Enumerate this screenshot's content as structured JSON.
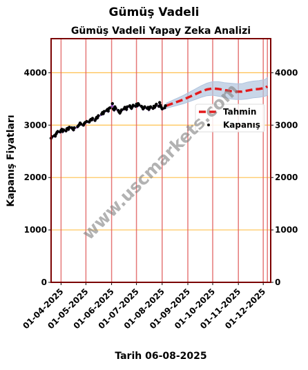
{
  "figure": {
    "title": "Gümüş Vadeli",
    "footer": "Tarih 06-08-2025",
    "watermark": "www.uscmarkets.com"
  },
  "chart_data": {
    "type": "line",
    "title": "Gümüş Vadeli Yapay Zeka Analizi",
    "xlabel": "",
    "ylabel": "Kapanış Fiyatları",
    "ylim": [
      0,
      4650
    ],
    "xlim": [
      "2025-03-20",
      "2025-12-10"
    ],
    "yticks": [
      0,
      1000,
      2000,
      3000,
      4000
    ],
    "xticks": [
      "01-04-2025",
      "01-05-2025",
      "01-06-2025",
      "01-07-2025",
      "01-08-2025",
      "01-09-2025",
      "01-10-2025",
      "01-11-2025",
      "01-12-2025"
    ],
    "vertical_lines": [
      "2025-03-20",
      "2025-04-01",
      "2025-05-01",
      "2025-06-01",
      "2025-07-01",
      "2025-08-01",
      "2025-09-01",
      "2025-10-01",
      "2025-11-01",
      "2025-12-01",
      "2025-12-06"
    ],
    "grid": "horizontal",
    "legend_position": "right",
    "colors": {
      "forecast": "#e31a1c",
      "close": "#000000",
      "band": "#b0c4de",
      "grid": "#ffc04d",
      "vline": "#e06060",
      "frame": "#7a0000",
      "underlay": "#7b2fbf"
    },
    "series": [
      {
        "name": "Tahmin",
        "style": "dashed",
        "x": [
          "2025-08-06",
          "2025-08-13",
          "2025-08-20",
          "2025-08-27",
          "2025-09-03",
          "2025-09-10",
          "2025-09-17",
          "2025-09-24",
          "2025-10-01",
          "2025-10-08",
          "2025-10-15",
          "2025-10-22",
          "2025-10-29",
          "2025-11-05",
          "2025-11-12",
          "2025-11-19",
          "2025-11-26",
          "2025-12-03",
          "2025-12-06"
        ],
        "values": [
          3370,
          3410,
          3450,
          3490,
          3540,
          3590,
          3640,
          3680,
          3700,
          3690,
          3670,
          3650,
          3640,
          3640,
          3660,
          3680,
          3690,
          3710,
          3740
        ],
        "lower": [
          3320,
          3350,
          3380,
          3410,
          3450,
          3490,
          3530,
          3560,
          3570,
          3550,
          3530,
          3500,
          3490,
          3490,
          3500,
          3520,
          3530,
          3550,
          3570
        ],
        "upper": [
          3420,
          3470,
          3520,
          3570,
          3630,
          3690,
          3750,
          3800,
          3830,
          3830,
          3810,
          3800,
          3790,
          3790,
          3820,
          3840,
          3850,
          3870,
          3910
        ]
      },
      {
        "name": "Kapanış",
        "style": "points",
        "x": [
          "2025-03-20",
          "2025-03-21",
          "2025-03-24",
          "2025-03-25",
          "2025-03-26",
          "2025-03-27",
          "2025-03-28",
          "2025-03-31",
          "2025-04-01",
          "2025-04-02",
          "2025-04-03",
          "2025-04-04",
          "2025-04-07",
          "2025-04-08",
          "2025-04-09",
          "2025-04-10",
          "2025-04-11",
          "2025-04-14",
          "2025-04-15",
          "2025-04-16",
          "2025-04-17",
          "2025-04-21",
          "2025-04-22",
          "2025-04-23",
          "2025-04-24",
          "2025-04-25",
          "2025-04-28",
          "2025-04-29",
          "2025-04-30",
          "2025-05-02",
          "2025-05-05",
          "2025-05-06",
          "2025-05-07",
          "2025-05-08",
          "2025-05-09",
          "2025-05-12",
          "2025-05-13",
          "2025-05-14",
          "2025-05-15",
          "2025-05-16",
          "2025-05-20",
          "2025-05-21",
          "2025-05-22",
          "2025-05-23",
          "2025-05-26",
          "2025-05-27",
          "2025-05-28",
          "2025-05-29",
          "2025-05-30",
          "2025-06-02",
          "2025-06-03",
          "2025-06-04",
          "2025-06-05",
          "2025-06-06",
          "2025-06-09",
          "2025-06-10",
          "2025-06-11",
          "2025-06-12",
          "2025-06-13",
          "2025-06-16",
          "2025-06-17",
          "2025-06-18",
          "2025-06-19",
          "2025-06-20",
          "2025-06-23",
          "2025-06-24",
          "2025-06-25",
          "2025-06-26",
          "2025-06-27",
          "2025-06-30",
          "2025-07-01",
          "2025-07-02",
          "2025-07-03",
          "2025-07-04",
          "2025-07-07",
          "2025-07-08",
          "2025-07-09",
          "2025-07-10",
          "2025-07-11",
          "2025-07-14",
          "2025-07-15",
          "2025-07-16",
          "2025-07-17",
          "2025-07-18",
          "2025-07-21",
          "2025-07-22",
          "2025-07-23",
          "2025-07-24",
          "2025-07-25",
          "2025-07-28",
          "2025-07-29",
          "2025-07-30",
          "2025-07-31",
          "2025-08-01",
          "2025-08-04",
          "2025-08-05"
        ],
        "values": [
          2750,
          2780,
          2800,
          2790,
          2830,
          2860,
          2880,
          2870,
          2900,
          2920,
          2880,
          2910,
          2890,
          2930,
          2940,
          2920,
          2960,
          2950,
          2930,
          2910,
          2950,
          2970,
          2990,
          3010,
          3040,
          3020,
          3000,
          3030,
          3050,
          3070,
          3060,
          3090,
          3110,
          3100,
          3130,
          3090,
          3120,
          3150,
          3140,
          3180,
          3210,
          3240,
          3220,
          3260,
          3280,
          3300,
          3270,
          3320,
          3330,
          3410,
          3310,
          3290,
          3350,
          3320,
          3280,
          3250,
          3230,
          3260,
          3290,
          3310,
          3340,
          3320,
          3300,
          3350,
          3370,
          3340,
          3320,
          3350,
          3380,
          3360,
          3400,
          3370,
          3410,
          3390,
          3360,
          3340,
          3310,
          3330,
          3350,
          3320,
          3340,
          3300,
          3330,
          3350,
          3320,
          3360,
          3340,
          3370,
          3400,
          3360,
          3430,
          3380,
          3340,
          3310,
          3330,
          3370
        ]
      }
    ]
  }
}
